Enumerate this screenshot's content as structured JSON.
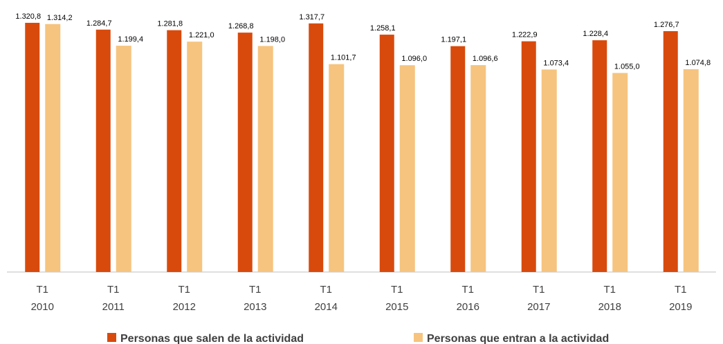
{
  "chart_data": {
    "type": "bar",
    "categories": [
      "T1 2010",
      "T1 2011",
      "T1 2012",
      "T1 2013",
      "T1 2014",
      "T1 2015",
      "T1 2016",
      "T1 2017",
      "T1 2018",
      "T1 2019"
    ],
    "series": [
      {
        "name": "Personas que salen de la actividad",
        "color": "#d84a0c",
        "values": [
          1320.8,
          1284.7,
          1281.8,
          1268.8,
          1317.7,
          1258.1,
          1197.1,
          1222.9,
          1228.4,
          1276.7
        ],
        "value_labels": [
          "1.320,8",
          "1.284,7",
          "1.281,8",
          "1.268,8",
          "1.317,7",
          "1.258,1",
          "1.197,1",
          "1.222,9",
          "1.228,4",
          "1.276,7"
        ]
      },
      {
        "name": "Personas que entran a la actividad",
        "color": "#f6c47f",
        "values": [
          1314.2,
          1199.4,
          1221.0,
          1198.0,
          1101.7,
          1096.0,
          1096.6,
          1073.4,
          1055.0,
          1074.8
        ],
        "value_labels": [
          "1.314,2",
          "1.199,4",
          "1.221,0",
          "1.198,0",
          "1.101,7",
          "1.096,0",
          "1.096,6",
          "1.073,4",
          "1.055,0",
          "1.074,8"
        ]
      }
    ],
    "ylim": [
      0,
      1350
    ],
    "legend": "bottom"
  }
}
